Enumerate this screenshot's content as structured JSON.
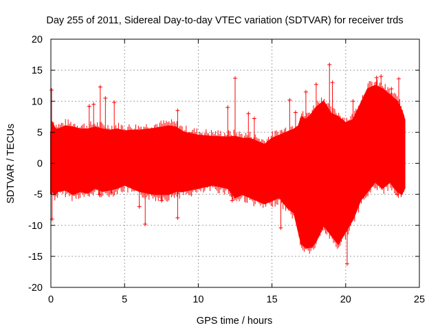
{
  "chart_data": {
    "type": "scatter",
    "title": "Day 255 of 2011, Sidereal Day-to-day VTEC variation (SDTVAR) for receiver trds",
    "xlabel": "GPS time / hours",
    "ylabel": "SDTVAR / TECUs",
    "xlim": [
      0,
      25
    ],
    "ylim": [
      -20,
      20
    ],
    "xticks": [
      0,
      5,
      10,
      15,
      20,
      25
    ],
    "yticks": [
      -20,
      -15,
      -10,
      -5,
      0,
      5,
      10,
      15,
      20
    ],
    "xtick_labels": [
      "0",
      "5",
      "10",
      "15",
      "20",
      "25"
    ],
    "ytick_labels": [
      "-20",
      "-15",
      "-10",
      "-5",
      "0",
      "5",
      "10",
      "15",
      "20"
    ],
    "grid": true,
    "marker": "+",
    "series": [
      {
        "name": "SDTVAR",
        "color": "#ff0000",
        "envelope": {
          "x": [
            0.0,
            0.1,
            0.3,
            0.5,
            1,
            1.5,
            2,
            2.5,
            3,
            3.5,
            4,
            4.5,
            5,
            5.5,
            6,
            7,
            8,
            8.5,
            9,
            10,
            11,
            12,
            12.5,
            13,
            13.5,
            14,
            14.5,
            15,
            15.5,
            16,
            16.5,
            16.8,
            17,
            17.3,
            17.7,
            18,
            18.5,
            19,
            19.5,
            20,
            20.5,
            21,
            21.5,
            22,
            22.5,
            23,
            23.5,
            23.8,
            24.0
          ],
          "upper": [
            5.0,
            6.5,
            5.5,
            5.5,
            6.0,
            5.8,
            5.5,
            5.5,
            5.8,
            5.5,
            5.3,
            5.5,
            5.2,
            5.3,
            5.3,
            5.6,
            6.0,
            5.8,
            5.0,
            4.5,
            4.3,
            4.2,
            4.3,
            4.0,
            4.0,
            3.5,
            3.0,
            4.0,
            4.5,
            5.0,
            5.5,
            6.0,
            7.5,
            7.0,
            8.0,
            9.0,
            10.0,
            8.0,
            7.5,
            6.5,
            7.0,
            9.5,
            12.0,
            12.5,
            12.0,
            11.0,
            10.0,
            8.5,
            7.0
          ],
          "lower": [
            -5.0,
            -4.5,
            -5.0,
            -4.5,
            -4.3,
            -5.0,
            -4.5,
            -4.8,
            -4.0,
            -4.5,
            -4.3,
            -4.0,
            -3.5,
            -4.0,
            -4.5,
            -5.0,
            -5.0,
            -4.5,
            -4.5,
            -4.0,
            -3.5,
            -4.0,
            -5.5,
            -5.0,
            -5.5,
            -6.0,
            -6.5,
            -6.0,
            -5.5,
            -7.0,
            -8.0,
            -11.0,
            -13.0,
            -13.6,
            -13.5,
            -12.5,
            -10.0,
            -11.5,
            -13.0,
            -11.0,
            -9.0,
            -6.0,
            -4.5,
            -3.0,
            -4.0,
            -3.0,
            -4.5,
            -5.0,
            -4.0
          ]
        },
        "spikes": [
          [
            0.05,
            11.8
          ],
          [
            0.08,
            -9.0
          ],
          [
            2.6,
            9.2
          ],
          [
            2.9,
            9.5
          ],
          [
            3.35,
            12.3
          ],
          [
            3.7,
            10.5
          ],
          [
            4.3,
            9.8
          ],
          [
            3.3,
            -5.0
          ],
          [
            4.1,
            -4.8
          ],
          [
            6.4,
            -9.8
          ],
          [
            6.0,
            -7.0
          ],
          [
            7.5,
            -6.0
          ],
          [
            8.6,
            -8.8
          ],
          [
            8.6,
            8.5
          ],
          [
            12.5,
            13.7
          ],
          [
            12.3,
            -6.0
          ],
          [
            12.0,
            9.0
          ],
          [
            13.4,
            8.0
          ],
          [
            13.8,
            7.2
          ],
          [
            15.6,
            -10.4
          ],
          [
            16.2,
            10.2
          ],
          [
            16.6,
            8.2
          ],
          [
            17.3,
            11.5
          ],
          [
            18.0,
            12.7
          ],
          [
            18.9,
            15.9
          ],
          [
            19.1,
            13.0
          ],
          [
            20.1,
            -16.2
          ],
          [
            20.0,
            -10.2
          ],
          [
            20.5,
            10.0
          ],
          [
            22.1,
            13.8
          ],
          [
            22.4,
            14.0
          ],
          [
            23.1,
            12.0
          ],
          [
            23.6,
            13.6
          ],
          [
            23.5,
            -5.0
          ]
        ]
      }
    ]
  }
}
